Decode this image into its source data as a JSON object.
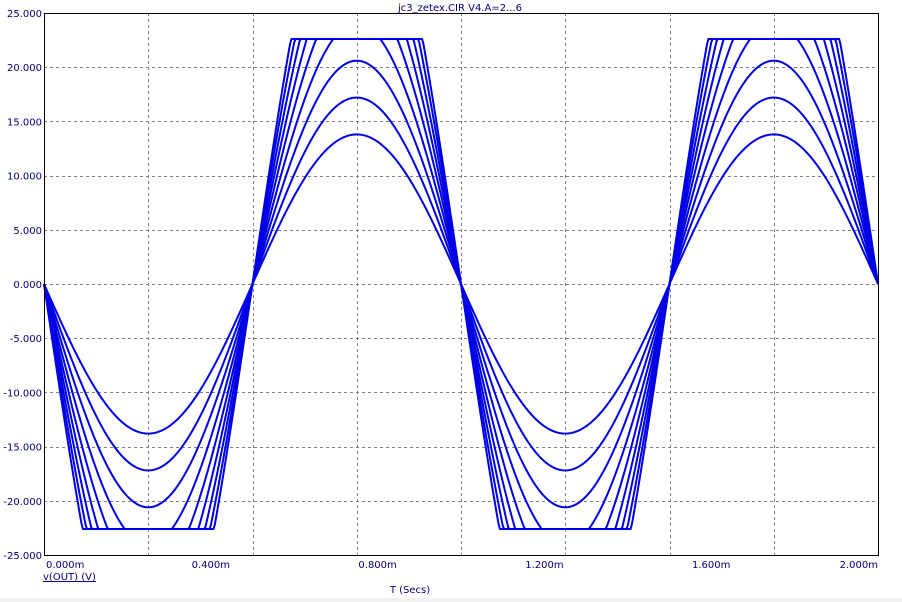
{
  "chart_data": {
    "type": "line",
    "title": "jc3_zetex.CIR V4.A=2...6",
    "xlabel": "T (Secs)",
    "ylabel": "",
    "xlim": [
      0,
      0.002
    ],
    "ylim": [
      -25,
      25
    ],
    "x_ticks": [
      0,
      0.0004,
      0.0008,
      0.0012,
      0.0016,
      0.002
    ],
    "x_tick_labels": [
      "0.000m",
      "0.400m",
      "0.800m",
      "1.200m",
      "1.600m",
      "2.000m"
    ],
    "y_ticks": [
      25,
      20,
      15,
      10,
      5,
      0,
      -5,
      -10,
      -15,
      -20,
      -25
    ],
    "y_tick_labels": [
      "25.000",
      "20.000",
      "15.000",
      "10.000",
      "5.000",
      "0.000",
      "-5.000",
      "-10.000",
      "-15.000",
      "-20.000",
      "-25.000"
    ],
    "grid": true,
    "series_label": "v(OUT) (V)",
    "series_color": "#0000e6",
    "frequency_hz": 1000,
    "clip_level": 22.6,
    "series": [
      {
        "amplitude": 13.8
      },
      {
        "amplitude": 17.2
      },
      {
        "amplitude": 20.6
      },
      {
        "amplitude": 24.1
      },
      {
        "amplitude": 27.6
      },
      {
        "amplitude": 31.0
      },
      {
        "amplitude": 34.4
      },
      {
        "amplitude": 37.9
      },
      {
        "amplitude": 41.3
      }
    ]
  }
}
